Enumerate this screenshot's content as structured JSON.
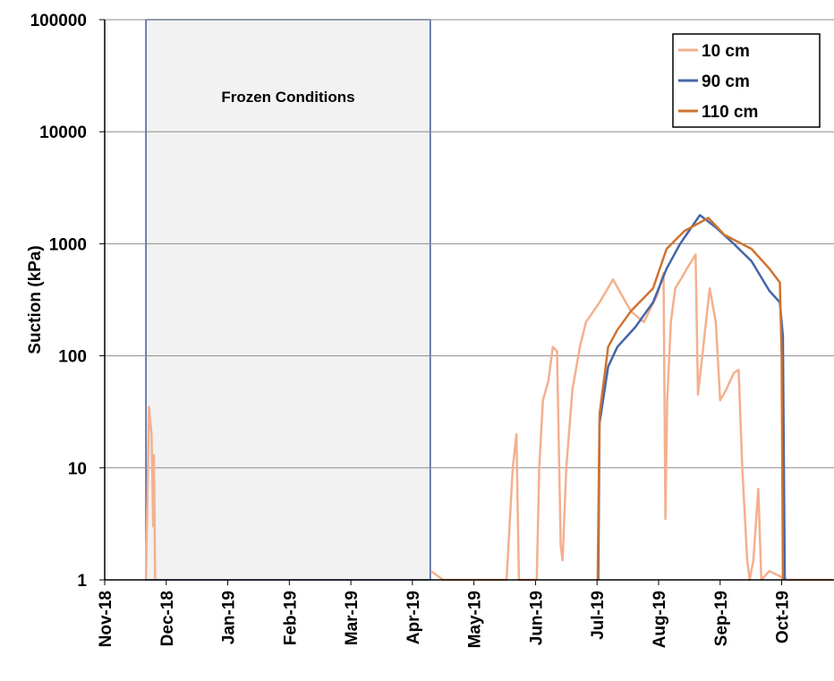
{
  "chart_data": {
    "type": "line",
    "y_label": "Suction (kPa)",
    "log_y": true,
    "grid": true,
    "legend": "top-right",
    "annotation": {
      "text": "Frozen Conditions",
      "xlim": [
        0.67,
        5.29
      ]
    },
    "xlim": [
      0,
      11.85
    ],
    "xticks": [
      {
        "value": 0,
        "label": "Nov-18"
      },
      {
        "value": 1,
        "label": "Dec-18"
      },
      {
        "value": 2,
        "label": "Jan-19"
      },
      {
        "value": 3,
        "label": "Feb-19"
      },
      {
        "value": 4,
        "label": "Mar-19"
      },
      {
        "value": 5,
        "label": "Apr-19"
      },
      {
        "value": 6,
        "label": "May-19"
      },
      {
        "value": 7,
        "label": "Jun-19"
      },
      {
        "value": 8,
        "label": "Jul-19"
      },
      {
        "value": 9,
        "label": "Aug-19"
      },
      {
        "value": 10,
        "label": "Sep-19"
      },
      {
        "value": 11,
        "label": "Oct-19"
      }
    ],
    "ylim": [
      1,
      100000
    ],
    "yticks": [
      1,
      10,
      100,
      1000,
      10000,
      100000
    ],
    "series": [
      {
        "name": "10 cm",
        "color": "#f4b08e",
        "x": [
          0.67,
          0.72,
          0.76,
          0.79,
          0.8,
          0.82,
          null,
          5.3,
          5.5,
          6.53,
          6.63,
          6.69,
          6.73,
          7.02,
          7.06,
          7.12,
          7.21,
          7.28,
          7.35,
          7.41,
          7.44,
          7.5,
          7.6,
          7.72,
          7.82,
          8.04,
          8.26,
          8.4,
          8.55,
          8.76,
          8.98,
          9.08,
          9.11,
          9.14,
          9.2,
          9.27,
          9.38,
          9.46,
          9.6,
          9.64,
          9.71,
          9.83,
          9.93,
          10.0,
          10.1,
          10.22,
          10.3,
          10.36,
          10.44,
          10.48,
          10.54,
          10.62,
          10.67,
          10.8,
          11.09,
          11.82
        ],
        "values": [
          1,
          35,
          20,
          3,
          13,
          1,
          null,
          1.2,
          1,
          1,
          10,
          20,
          1,
          1,
          10,
          40,
          60,
          120,
          110,
          2,
          1.5,
          10,
          50,
          120,
          200,
          300,
          480,
          350,
          250,
          200,
          350,
          550,
          3.5,
          40,
          200,
          400,
          500,
          600,
          800,
          45,
          100,
          400,
          200,
          40,
          50,
          70,
          75,
          10,
          1.5,
          1,
          1.5,
          6.5,
          1,
          1.2,
          1,
          1
        ]
      },
      {
        "name": "90 cm",
        "color": "#4566a8",
        "x": [
          8.02,
          8.04,
          8.18,
          8.33,
          8.62,
          8.91,
          9.13,
          9.35,
          9.67,
          9.93,
          10.22,
          10.51,
          10.8,
          10.97,
          11.02,
          11.05
        ],
        "values": [
          1,
          25,
          80,
          120,
          180,
          300,
          600,
          1000,
          1800,
          1400,
          1000,
          700,
          380,
          300,
          150,
          1
        ]
      },
      {
        "name": "110 cm",
        "color": "#cf7330",
        "x": [
          8.01,
          8.04,
          8.18,
          8.33,
          8.55,
          8.91,
          9.13,
          9.42,
          9.81,
          10.07,
          10.51,
          10.8,
          10.97,
          11.0,
          11.02
        ],
        "values": [
          1,
          30,
          120,
          170,
          250,
          400,
          900,
          1300,
          1700,
          1200,
          900,
          600,
          450,
          100,
          1
        ]
      }
    ]
  }
}
